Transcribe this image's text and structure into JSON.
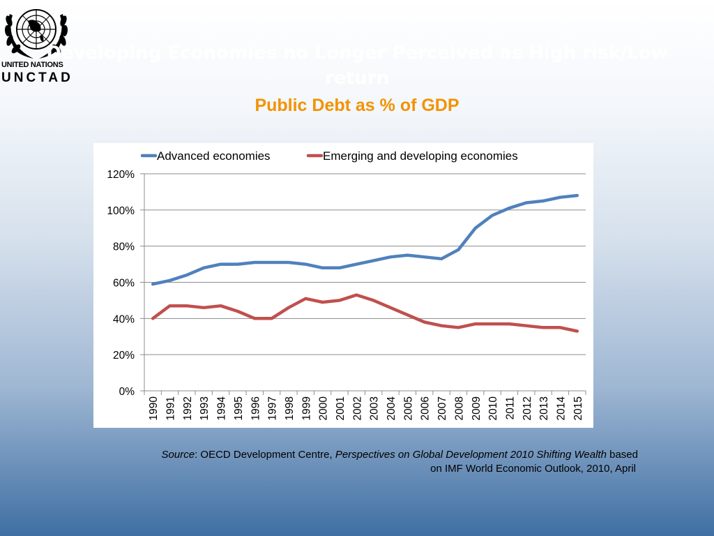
{
  "header": {
    "logo_line1": "UNITED NATIONS",
    "logo_line2": "UNCTAD",
    "title": "Developing Economies no Longer Perceived as High risk/Low return",
    "subtitle": "Public Debt as % of GDP"
  },
  "colors": {
    "advanced": "#4f81bd",
    "emerging": "#c0504d",
    "subtitle": "#f39200"
  },
  "chart_data": {
    "type": "line",
    "categories": [
      "1990",
      "1991",
      "1992",
      "1993",
      "1994",
      "1995",
      "1996",
      "1997",
      "1998",
      "1999",
      "2000",
      "2001",
      "2002",
      "2003",
      "2004",
      "2005",
      "2006",
      "2007",
      "2008",
      "2009",
      "2010",
      "2011",
      "2012",
      "2013",
      "2014",
      "2015"
    ],
    "series": [
      {
        "name": "Advanced economies",
        "color": "#4f81bd",
        "values": [
          0.59,
          0.61,
          0.64,
          0.68,
          0.7,
          0.7,
          0.71,
          0.71,
          0.71,
          0.7,
          0.68,
          0.68,
          0.7,
          0.72,
          0.74,
          0.75,
          0.74,
          0.73,
          0.78,
          0.9,
          0.97,
          1.01,
          1.04,
          1.05,
          1.07,
          1.08
        ]
      },
      {
        "name": "Emerging and developing economies",
        "color": "#c0504d",
        "values": [
          0.4,
          0.47,
          0.47,
          0.46,
          0.47,
          0.44,
          0.4,
          0.4,
          0.46,
          0.51,
          0.49,
          0.5,
          0.53,
          0.5,
          0.46,
          0.42,
          0.38,
          0.36,
          0.35,
          0.37,
          0.37,
          0.37,
          0.36,
          0.35,
          0.35,
          0.33
        ]
      }
    ],
    "yticks": [
      "0%",
      "20%",
      "40%",
      "60%",
      "80%",
      "100%",
      "120%"
    ],
    "ylim": [
      0,
      1.2
    ],
    "grid": true,
    "legend_position": "top"
  },
  "source": {
    "label": "Source",
    "text_before": ": OECD Development Centre, ",
    "italic_title": "Perspectives on Global Development 2010 Shifting Wealth",
    "text_after": " based",
    "line2": "on IMF World Economic Outlook, 2010, April"
  }
}
